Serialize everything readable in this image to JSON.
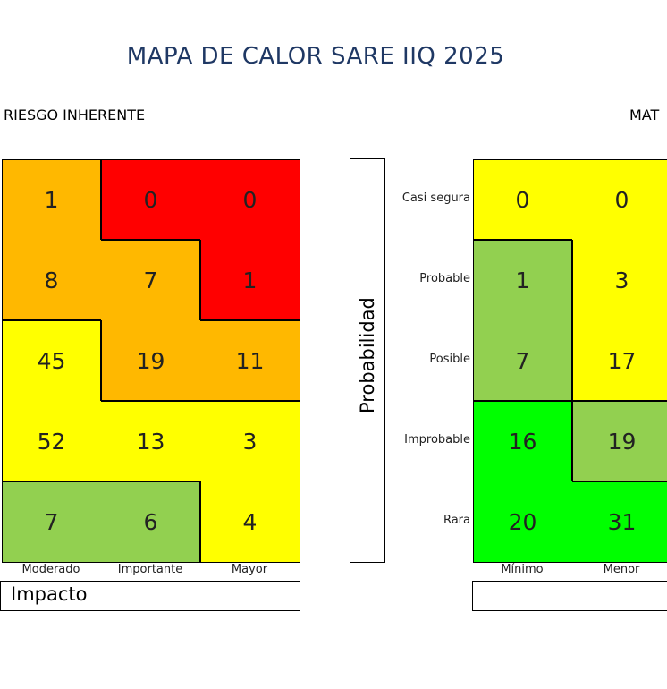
{
  "title": "MAPA DE CALOR SARE IIQ 2025",
  "colors": {
    "title": "#1f3864",
    "red": "#ff0000",
    "orange": "#ffb800",
    "yellow": "#ffff00",
    "light_green": "#92d050",
    "green": "#00ff00"
  },
  "chart_data": [
    {
      "type": "heatmap",
      "title": "RIESGO INHERENTE",
      "xlabel": "Impacto",
      "x_categories_visible": [
        "Moderado",
        "Importante",
        "Mayor"
      ],
      "values": [
        [
          1,
          0,
          0
        ],
        [
          8,
          7,
          1
        ],
        [
          45,
          19,
          11
        ],
        [
          52,
          13,
          3
        ],
        [
          7,
          6,
          4
        ]
      ],
      "cell_colors": [
        [
          "orange",
          "red",
          "red"
        ],
        [
          "orange",
          "orange",
          "red"
        ],
        [
          "yellow",
          "orange",
          "orange"
        ],
        [
          "yellow",
          "yellow",
          "yellow"
        ],
        [
          "light_green",
          "light_green",
          "yellow"
        ]
      ]
    },
    {
      "type": "heatmap",
      "title": "MAT",
      "ylabel": "Probabilidad",
      "y_categories": [
        "Casi segura",
        "Probable",
        "Posible",
        "Improbable",
        "Rara"
      ],
      "x_categories_visible": [
        "Mínimo",
        "Menor"
      ],
      "values": [
        [
          0,
          0
        ],
        [
          1,
          3
        ],
        [
          7,
          17
        ],
        [
          16,
          19
        ],
        [
          20,
          31
        ]
      ],
      "cell_colors": [
        [
          "yellow",
          "yellow"
        ],
        [
          "light_green",
          "yellow"
        ],
        [
          "light_green",
          "yellow"
        ],
        [
          "green",
          "light_green"
        ],
        [
          "green",
          "green"
        ]
      ]
    }
  ]
}
